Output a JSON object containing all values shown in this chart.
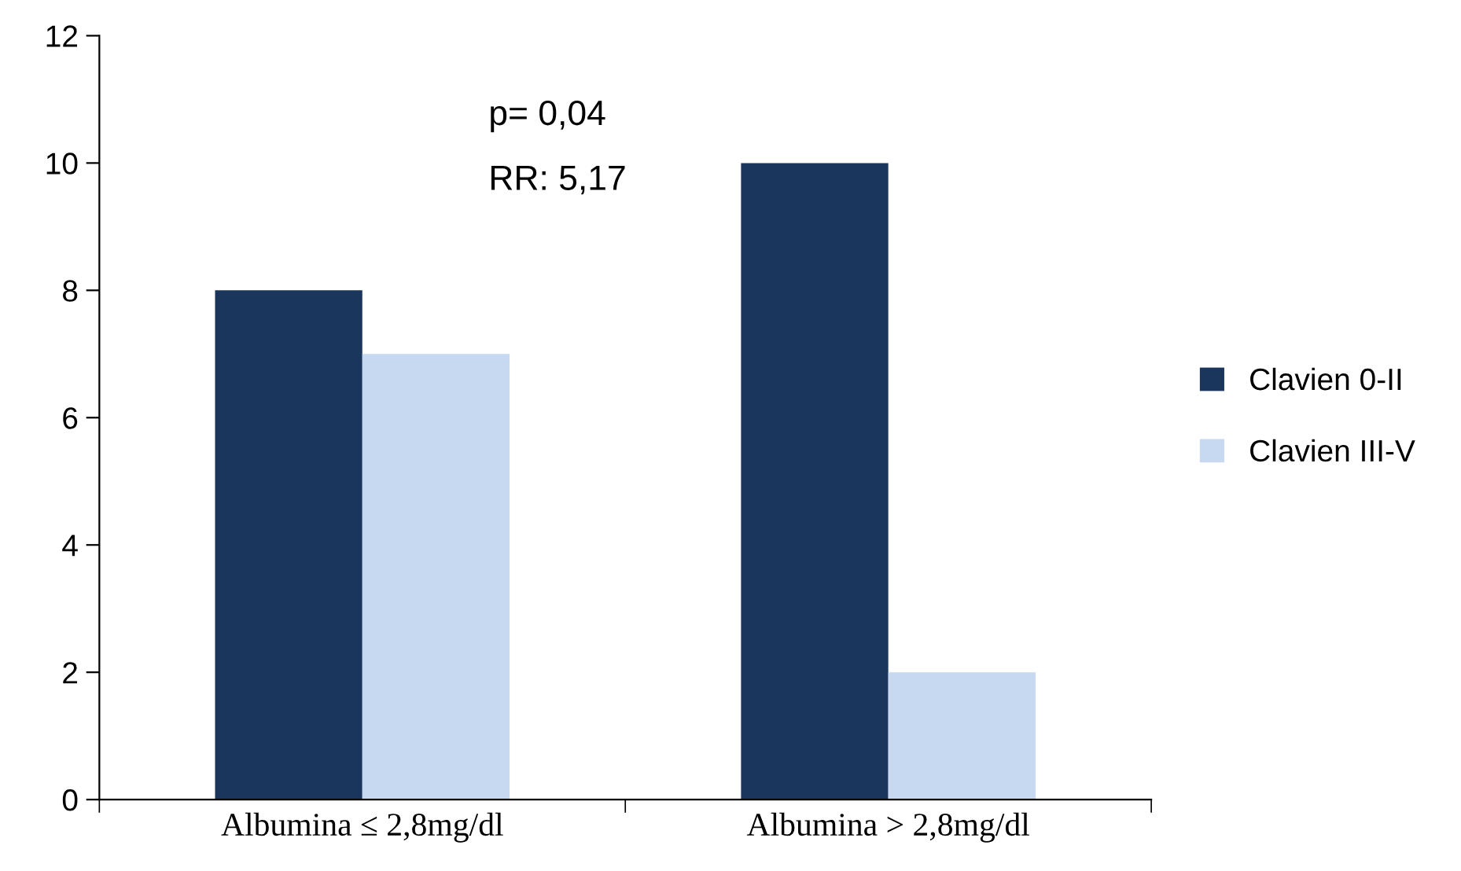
{
  "chart_data": {
    "type": "bar",
    "categories": [
      "Albumina ≤ 2,8mg/dl",
      "Albumina > 2,8mg/dl"
    ],
    "series": [
      {
        "name": "Clavien 0-II",
        "color": "#1b365d",
        "values": [
          8,
          10
        ]
      },
      {
        "name": "Clavien III-V",
        "color": "#c6d9f1",
        "values": [
          7,
          2
        ]
      }
    ],
    "ylim": [
      0,
      12
    ],
    "yticks": [
      0,
      2,
      4,
      6,
      8,
      10,
      12
    ],
    "annotations": [
      "p= 0,04",
      "RR: 5,17"
    ],
    "legend": "right"
  }
}
